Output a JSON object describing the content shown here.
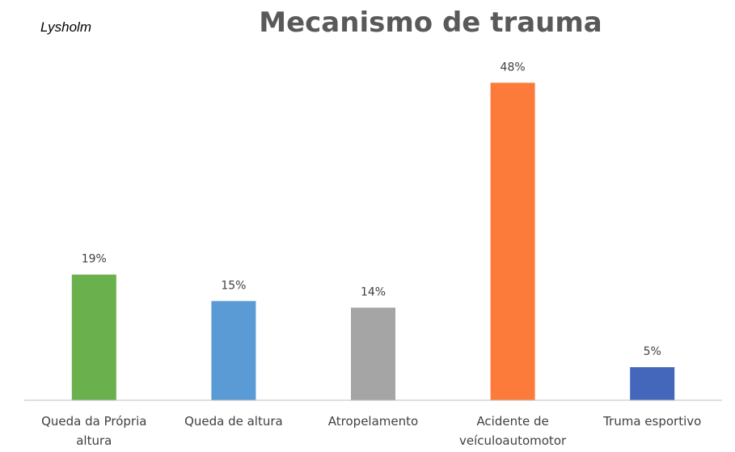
{
  "corner_label": "Lysholm",
  "chart_data": {
    "type": "bar",
    "title": "Mecanismo de trauma",
    "categories": [
      [
        "Queda da Própria",
        "altura"
      ],
      [
        "Queda de altura"
      ],
      [
        "Atropelamento"
      ],
      [
        "Acidente de",
        "veículoautomotor"
      ],
      [
        "Truma esportivo"
      ]
    ],
    "values": [
      19,
      15,
      14,
      48,
      5
    ],
    "data_labels": [
      "19%",
      "15%",
      "14%",
      "48%",
      "5%"
    ],
    "colors": [
      "#6ab04c",
      "#5b9bd5",
      "#a5a5a5",
      "#fc7b3a",
      "#4466bb"
    ],
    "ylim": [
      0,
      50
    ],
    "grid": false,
    "legend": "none"
  }
}
